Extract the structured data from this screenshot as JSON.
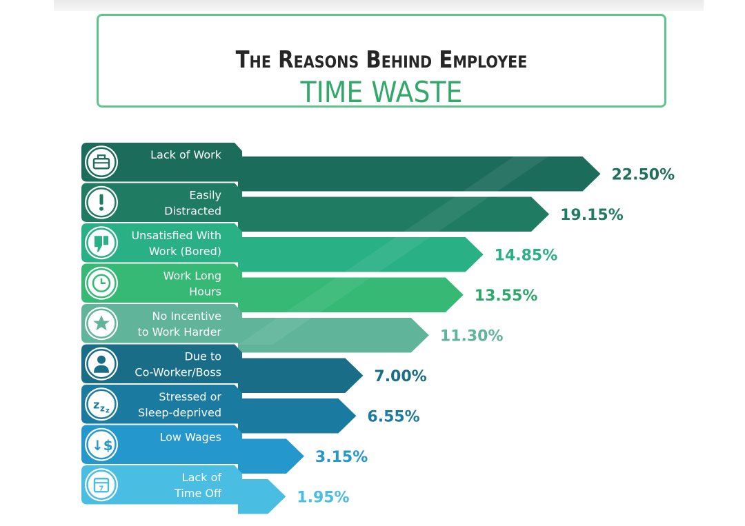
{
  "title": {
    "line1": "The Reasons Behind Employee",
    "line2": "TIME WASTE"
  },
  "chart_data": {
    "type": "bar",
    "orientation": "horizontal",
    "categories": [
      "Lack of Work",
      "Easily Distracted",
      "Unsatisfied With Work (Bored)",
      "Work Long Hours",
      "No Incentive to Work Harder",
      "Due to Co-Worker/Boss",
      "Stressed or Sleep-deprived",
      "Low Wages",
      "Lack of Time Off"
    ],
    "label_lines": [
      [
        "Lack of Work"
      ],
      [
        "Easily",
        "Distracted"
      ],
      [
        "Unsatisfied With",
        "Work (Bored)"
      ],
      [
        "Work Long",
        "Hours"
      ],
      [
        "No Incentive",
        "to Work Harder"
      ],
      [
        "Due to",
        "Co-Worker/Boss"
      ],
      [
        "Stressed or",
        "Sleep-deprived"
      ],
      [
        "Low Wages"
      ],
      [
        "Lack of",
        "Time Off"
      ]
    ],
    "values": [
      22.5,
      19.15,
      14.85,
      13.55,
      11.3,
      7.0,
      6.55,
      3.15,
      1.95
    ],
    "value_labels": [
      "22.50%",
      "19.15%",
      "14.85%",
      "13.55%",
      "11.30%",
      "7.00%",
      "6.55%",
      "3.15%",
      "1.95%"
    ],
    "units": "%",
    "icons": [
      "briefcase-icon",
      "exclamation-icon",
      "thumbs-down-icon",
      "clock-icon",
      "star-icon",
      "person-icon",
      "sleep-zzz-icon",
      "down-dollar-icon",
      "calendar-icon"
    ],
    "colors": [
      "#1c6c5c",
      "#1f7b62",
      "#2ab085",
      "#35b975",
      "#5fb49a",
      "#1a6d86",
      "#1a7aa0",
      "#2497cc",
      "#49bde2"
    ],
    "value_colors": [
      "#1f6f5c",
      "#1f7b62",
      "#2ab085",
      "#2ea86a",
      "#5fb49a",
      "#1a6d86",
      "#1a7aa0",
      "#2497cc",
      "#49bde2"
    ]
  }
}
